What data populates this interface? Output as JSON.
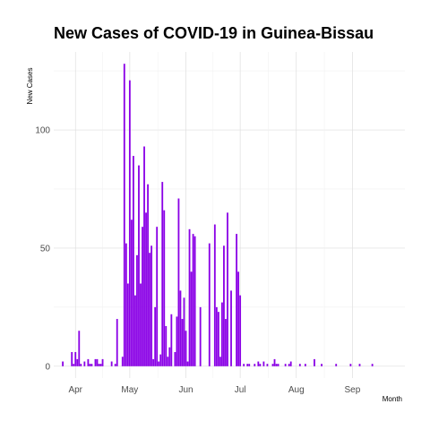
{
  "chart_data": {
    "type": "bar",
    "title": "New Cases of COVID-19 in Guinea-Bissau",
    "xlabel": "Month",
    "ylabel": "New Cases",
    "x_axis_type": "date",
    "x_range": [
      "2020-03-20",
      "2020-09-30"
    ],
    "ylim": [
      -5,
      133
    ],
    "y_ticks": [
      0,
      50,
      100
    ],
    "x_ticks": [
      {
        "date": "2020-04-01",
        "label": "Apr"
      },
      {
        "date": "2020-05-01",
        "label": "May"
      },
      {
        "date": "2020-06-01",
        "label": "Jun"
      },
      {
        "date": "2020-07-01",
        "label": "Jul"
      },
      {
        "date": "2020-08-01",
        "label": "Aug"
      },
      {
        "date": "2020-09-01",
        "label": "Sep"
      }
    ],
    "grid": true,
    "bar_color": "#8a00e6",
    "series": [
      {
        "x": [
          "2020-03-25",
          "2020-03-30",
          "2020-03-31",
          "2020-04-01",
          "2020-04-02",
          "2020-04-03",
          "2020-04-04",
          "2020-04-06",
          "2020-04-08",
          "2020-04-09",
          "2020-04-10",
          "2020-04-12",
          "2020-04-13",
          "2020-04-14",
          "2020-04-15",
          "2020-04-16",
          "2020-04-21",
          "2020-04-23",
          "2020-04-24",
          "2020-04-27",
          "2020-04-28",
          "2020-04-29",
          "2020-04-30",
          "2020-05-01",
          "2020-05-02",
          "2020-05-03",
          "2020-05-04",
          "2020-05-05",
          "2020-05-06",
          "2020-05-07",
          "2020-05-08",
          "2020-05-09",
          "2020-05-10",
          "2020-05-11",
          "2020-05-12",
          "2020-05-13",
          "2020-05-14",
          "2020-05-15",
          "2020-05-16",
          "2020-05-17",
          "2020-05-18",
          "2020-05-19",
          "2020-05-20",
          "2020-05-21",
          "2020-05-22",
          "2020-05-23",
          "2020-05-24",
          "2020-05-26",
          "2020-05-27",
          "2020-05-28",
          "2020-05-29",
          "2020-05-30",
          "2020-05-31",
          "2020-06-01",
          "2020-06-02",
          "2020-06-03",
          "2020-06-04",
          "2020-06-05",
          "2020-06-06",
          "2020-06-09",
          "2020-06-14",
          "2020-06-17",
          "2020-06-18",
          "2020-06-19",
          "2020-06-20",
          "2020-06-21",
          "2020-06-22",
          "2020-06-23",
          "2020-06-24",
          "2020-06-26",
          "2020-06-29",
          "2020-06-30",
          "2020-07-01",
          "2020-07-03",
          "2020-07-05",
          "2020-07-06",
          "2020-07-09",
          "2020-07-11",
          "2020-07-12",
          "2020-07-14",
          "2020-07-16",
          "2020-07-19",
          "2020-07-20",
          "2020-07-21",
          "2020-07-22",
          "2020-07-26",
          "2020-07-28",
          "2020-07-29",
          "2020-08-03",
          "2020-08-06",
          "2020-08-11",
          "2020-08-15",
          "2020-08-23",
          "2020-08-31",
          "2020-09-05",
          "2020-09-12"
        ],
        "values": [
          2,
          6,
          1,
          6,
          3,
          15,
          1,
          2,
          3,
          1,
          1,
          3,
          3,
          1,
          1,
          3,
          2,
          1,
          20,
          4,
          128,
          52,
          35,
          121,
          62,
          89,
          30,
          47,
          85,
          35,
          59,
          93,
          65,
          77,
          48,
          51,
          3,
          25,
          59,
          2,
          5,
          78,
          66,
          17,
          4,
          8,
          22,
          6,
          21,
          71,
          32,
          20,
          29,
          15,
          2,
          58,
          40,
          56,
          55,
          25,
          52,
          60,
          25,
          23,
          4,
          27,
          51,
          20,
          65,
          32,
          56,
          40,
          30,
          1,
          1,
          1,
          1,
          2,
          1,
          2,
          1,
          1,
          3,
          1,
          1,
          1,
          1,
          2,
          1,
          1,
          3,
          1,
          1,
          1,
          1,
          1
        ]
      }
    ]
  }
}
